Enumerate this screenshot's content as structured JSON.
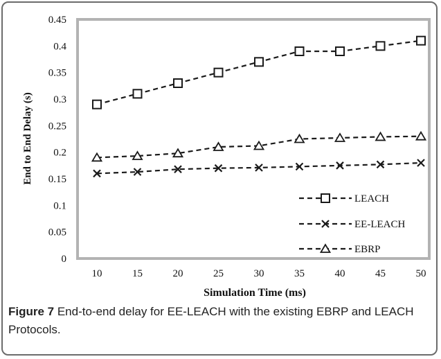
{
  "caption": {
    "label": "Figure 7",
    "text": " End-to-end delay for EE-LEACH with the existing EBRP and LEACH Protocols."
  },
  "chart_data": {
    "type": "line",
    "title": "",
    "xlabel": "Simulation Time (ms)",
    "ylabel": "End to End Delay (s)",
    "x": [
      10,
      15,
      20,
      25,
      30,
      35,
      40,
      45,
      50
    ],
    "x_tick_labels": [
      "10",
      "15",
      "20",
      "25",
      "30",
      "35",
      "40",
      "45",
      "50"
    ],
    "y_tick_labels": [
      "0",
      "0.05",
      "0.1",
      "0.15",
      "0.2",
      "0.25",
      "0.3",
      "0.35",
      "0.4",
      "0.45"
    ],
    "ylim": [
      0,
      0.45
    ],
    "grid": false,
    "legend_position": "bottom-right",
    "series": [
      {
        "name": "LEACH",
        "marker": "square",
        "values": [
          0.29,
          0.31,
          0.33,
          0.35,
          0.37,
          0.39,
          0.39,
          0.4,
          0.41
        ]
      },
      {
        "name": "EE-LEACH",
        "marker": "x",
        "values": [
          0.16,
          0.163,
          0.168,
          0.17,
          0.171,
          0.173,
          0.175,
          0.177,
          0.18
        ]
      },
      {
        "name": "EBRP",
        "marker": "triangle",
        "values": [
          0.19,
          0.193,
          0.198,
          0.21,
          0.212,
          0.225,
          0.227,
          0.229,
          0.23
        ]
      }
    ],
    "colors": {
      "line": "#1a1a1a",
      "plot_border": "#b3b3b3"
    }
  }
}
